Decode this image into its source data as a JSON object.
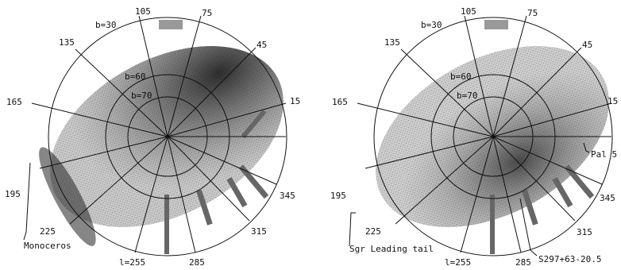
{
  "panels": [
    {
      "id": "left",
      "latitude_labels": [
        "b=30",
        "b=60",
        "b=70"
      ],
      "longitude_labels": [
        "105",
        "75",
        "45",
        "15",
        "345",
        "315",
        "285",
        "l=255",
        "225",
        "195",
        "165",
        "135"
      ],
      "annotation": "Monoceros"
    },
    {
      "id": "right",
      "latitude_labels": [
        "b=30",
        "b=60",
        "b=70"
      ],
      "longitude_labels": [
        "105",
        "75",
        "45",
        "15",
        "345",
        "315",
        "285",
        "l=255",
        "225",
        "195",
        "165",
        "135"
      ],
      "annotations": [
        "Pal 5",
        "Sgr Leading tail",
        "S297+63-20.5"
      ]
    }
  ],
  "colors": {
    "ink": "#111111",
    "density_light": "#d9d9d9",
    "density_dark": "#1a1a1a"
  }
}
